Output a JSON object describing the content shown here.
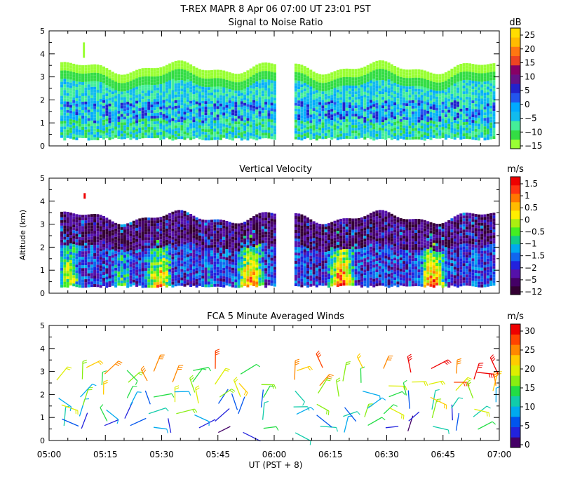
{
  "title": "T-REX   MAPR   8 Apr 06   07:00 UT   23:01   PST",
  "xaxis": {
    "ticks": [
      "05:00",
      "05:15",
      "05:30",
      "05:45",
      "06:00",
      "06:15",
      "06:30",
      "06:45",
      "07:00"
    ],
    "label": "UT   (PST + 8)",
    "range_minutes": [
      0,
      120
    ]
  },
  "ylabel": "Altitude (km)",
  "chart_data": [
    {
      "type": "heatmap",
      "title": "Signal to Noise Ratio",
      "unit": "dB",
      "ylim": [
        0,
        5
      ],
      "yticks": [
        "0",
        "1",
        "2",
        "3",
        "4",
        "5"
      ],
      "colorbar_ticks": [
        "25",
        "20",
        "15",
        "10",
        "5",
        "0",
        "−5",
        "−10",
        "−15"
      ],
      "data_gap_minutes": [
        60,
        65
      ],
      "top_altitude_km": 3.4,
      "bottom_altitude_km": 0.35
    },
    {
      "type": "heatmap",
      "title": "Vertical Velocity",
      "unit": "m/s",
      "ylim": [
        0,
        5
      ],
      "yticks": [
        "0",
        "1",
        "2",
        "3",
        "4",
        "5"
      ],
      "colorbar_ticks": [
        "1.5",
        "1",
        "0.5",
        "0",
        "−0.5",
        "−1",
        "−1.5",
        "−2",
        "−5",
        "−12"
      ],
      "data_gap_minutes": [
        60,
        65
      ],
      "top_altitude_km": 3.3,
      "bottom_altitude_km": 0.35
    },
    {
      "type": "scatter",
      "title": "FCA 5 Minute Averaged Winds",
      "unit": "m/s",
      "ylim": [
        0,
        5
      ],
      "yticks": [
        "0",
        "1",
        "2",
        "3",
        "4",
        "5"
      ],
      "colorbar_ticks": [
        "30",
        "25",
        "20",
        "15",
        "10",
        "5",
        "0"
      ],
      "altitude_levels_km": [
        0.5,
        1.0,
        1.5,
        2.0,
        2.5,
        3.0
      ],
      "time_minutes": [
        3,
        9,
        15,
        21,
        27,
        33,
        39,
        45,
        51,
        57,
        66,
        72,
        78,
        84,
        90,
        96,
        102,
        108,
        114,
        119
      ]
    }
  ],
  "colors": {
    "snr": [
      "#99ff33",
      "#33dd44",
      "#44ee99",
      "#11bbee",
      "#00aaff",
      "#2255ee",
      "#2222cc",
      "#661188",
      "#880066",
      "#ee4422",
      "#ff7711",
      "#ffbb00",
      "#ffdd00"
    ],
    "vv": [
      "#330033",
      "#440066",
      "#5511aa",
      "#2222dd",
      "#1166ee",
      "#00aaee",
      "#11cc88",
      "#44ee22",
      "#aaee11",
      "#ffee00",
      "#ffbb00",
      "#ff7700",
      "#ff3311",
      "#ee0000"
    ],
    "wind": [
      "#440066",
      "#2222dd",
      "#0055ee",
      "#00aaee",
      "#11ccaa",
      "#22dd44",
      "#88ee11",
      "#ddee00",
      "#ffcc00",
      "#ff8800",
      "#ff4400",
      "#ee0000"
    ]
  }
}
